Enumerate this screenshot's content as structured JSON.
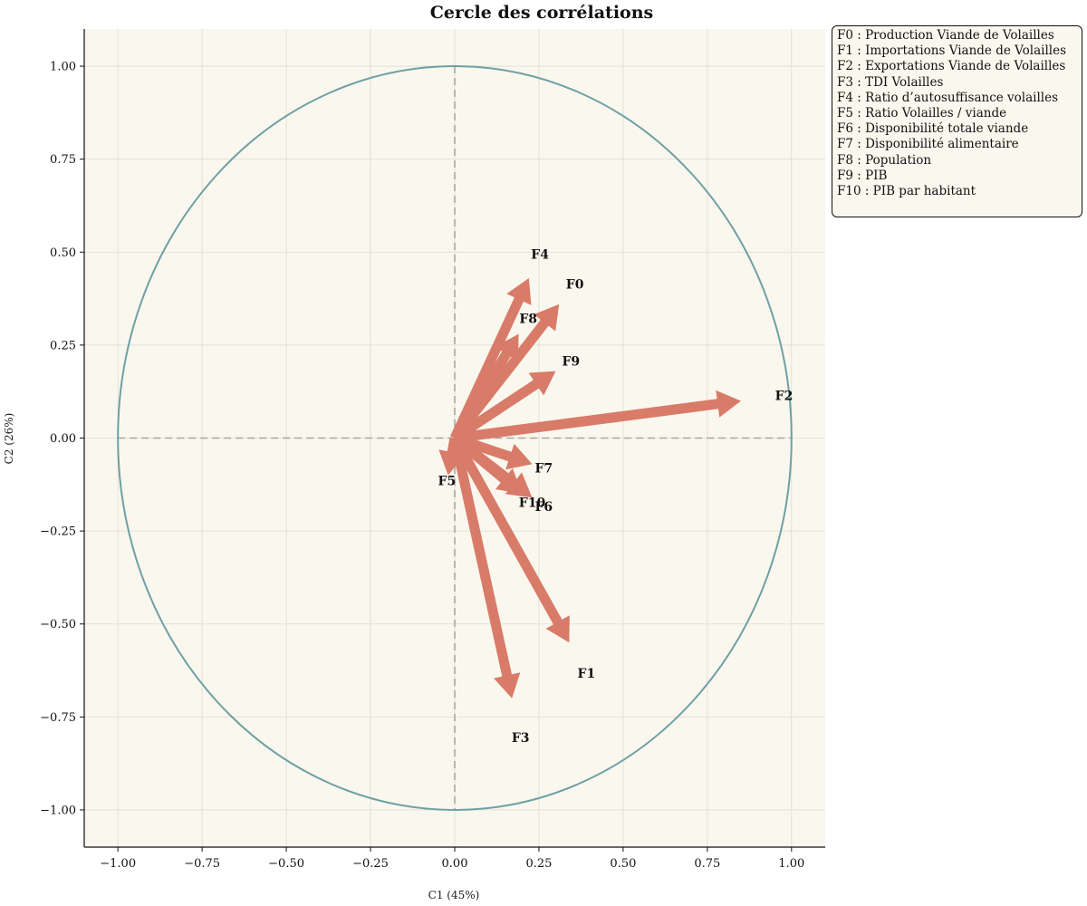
{
  "chart_data": {
    "type": "scatter",
    "subtype": "correlation-circle",
    "title": "Cercle des corrélations",
    "xlabel": "C1 (45%)",
    "ylabel": "C2 (26%)",
    "xlim": [
      -1.1,
      1.1
    ],
    "ylim": [
      -1.1,
      1.1
    ],
    "xticks": [
      "−1.00",
      "−0.75",
      "−0.50",
      "−0.25",
      "0.00",
      "0.25",
      "0.50",
      "0.75",
      "1.00"
    ],
    "yticks": [
      "−1.00",
      "−0.75",
      "−0.50",
      "−0.25",
      "0.00",
      "0.25",
      "0.50",
      "0.75",
      "1.00"
    ],
    "grid": true,
    "legend_position": "outside-top-right",
    "vectors": [
      {
        "label": "F0",
        "x": 0.31,
        "y": 0.36
      },
      {
        "label": "F1",
        "x": 0.34,
        "y": -0.55
      },
      {
        "label": "F2",
        "x": 0.85,
        "y": 0.1
      },
      {
        "label": "F3",
        "x": 0.17,
        "y": -0.7
      },
      {
        "label": "F4",
        "x": 0.22,
        "y": 0.43
      },
      {
        "label": "F5",
        "x": -0.02,
        "y": -0.1
      },
      {
        "label": "F6",
        "x": 0.23,
        "y": -0.16
      },
      {
        "label": "F7",
        "x": 0.23,
        "y": -0.07
      },
      {
        "label": "F8",
        "x": 0.19,
        "y": 0.28
      },
      {
        "label": "F9",
        "x": 0.3,
        "y": 0.18
      },
      {
        "label": "F10",
        "x": 0.2,
        "y": -0.15
      }
    ],
    "legend": [
      "F0 : Production Viande de Volailles",
      "F1 : Importations Viande de Volailles",
      "F2 : Exportations Viande de Volailles",
      "F3 : TDI Volailles",
      "F4 : Ratio d’autosuffisance volailles",
      "F5 : Ratio Volailles / viande",
      "F6 : Disponibilité totale viande",
      "F7 : Disponibilité alimentaire",
      "F8 : Population",
      "F9 : PIB",
      "F10 : PIB par habitant"
    ],
    "colors": {
      "arrow": "#d97b69",
      "circle": "#6fa0a5",
      "background": "#faf7ee",
      "grid": "#dcdcd4",
      "guide": "#a8a8a0"
    }
  }
}
